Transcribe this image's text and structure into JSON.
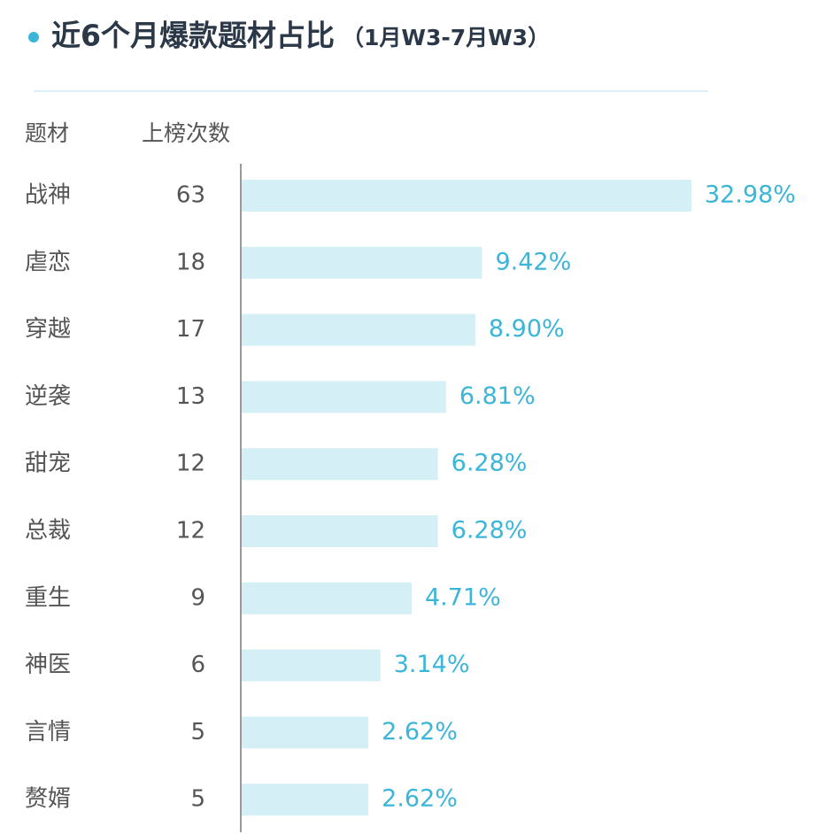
{
  "chart_data": {
    "type": "bar",
    "title": "近6个月爆款题材占比",
    "subtitle": "（1月W3-7月W3）",
    "category_header": "题材",
    "count_header": "上榜次数",
    "categories": [
      "战神",
      "虐恋",
      "穿越",
      "逆袭",
      "甜宠",
      "总裁",
      "重生",
      "神医",
      "言情",
      "赘婿"
    ],
    "counts": [
      63,
      18,
      17,
      13,
      12,
      12,
      9,
      6,
      5,
      5
    ],
    "values": [
      32.98,
      9.42,
      8.9,
      6.81,
      6.28,
      6.28,
      4.71,
      3.14,
      2.62,
      2.62
    ],
    "value_labels": [
      "32.98%",
      "9.42%",
      "8.90%",
      "6.81%",
      "6.28%",
      "6.28%",
      "4.71%",
      "3.14%",
      "2.62%",
      "2.62%"
    ],
    "color": "#d5eff6",
    "label_color": "#3bb5d8"
  }
}
